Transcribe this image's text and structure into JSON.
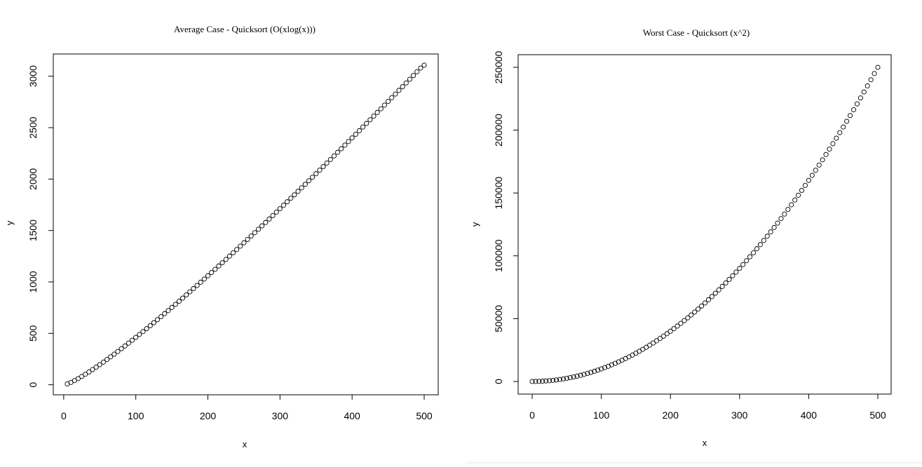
{
  "chart_data": [
    {
      "type": "scatter",
      "title": "Average Case - Quicksort (O(xlog(x)))",
      "xlabel": "x",
      "ylabel": "y",
      "xlim": [
        5,
        500
      ],
      "ylim": [
        11.6,
        3107
      ],
      "x_ticks": [
        0,
        100,
        200,
        300,
        400,
        500
      ],
      "x_tick_labels": [
        "0",
        "100",
        "200",
        "300",
        "400",
        "500"
      ],
      "y_ticks": [
        0,
        500,
        1000,
        1500,
        2000,
        2500,
        3000
      ],
      "y_tick_labels": [
        "0",
        "500",
        "1000",
        "1500",
        "2000",
        "2500",
        "3000"
      ],
      "series": [
        {
          "function": "x*ln(x)",
          "x": [
            5,
            10,
            15,
            20,
            25,
            30,
            35,
            40,
            45,
            50,
            55,
            60,
            65,
            70,
            75,
            80,
            85,
            90,
            95,
            100,
            105,
            110,
            115,
            120,
            125,
            130,
            135,
            140,
            145,
            150,
            155,
            160,
            165,
            170,
            175,
            180,
            185,
            190,
            195,
            200,
            205,
            210,
            215,
            220,
            225,
            230,
            235,
            240,
            245,
            250,
            255,
            260,
            265,
            270,
            275,
            280,
            285,
            290,
            295,
            300,
            305,
            310,
            315,
            320,
            325,
            330,
            335,
            340,
            345,
            350,
            355,
            360,
            365,
            370,
            375,
            380,
            385,
            390,
            395,
            400,
            405,
            410,
            415,
            420,
            425,
            430,
            435,
            440,
            445,
            450,
            455,
            460,
            465,
            470,
            475,
            480,
            485,
            490,
            495,
            500
          ],
          "y": [
            8.0,
            23.0,
            40.6,
            59.9,
            80.5,
            102.0,
            124.4,
            147.6,
            171.3,
            195.6,
            220.4,
            245.7,
            271.3,
            297.4,
            323.8,
            350.6,
            377.6,
            405.0,
            432.6,
            460.5,
            488.7,
            517.0,
            545.6,
            574.5,
            603.5,
            632.8,
            662.2,
            691.8,
            721.6,
            751.6,
            781.7,
            812.0,
            842.5,
            873.1,
            903.9,
            934.7,
            965.8,
            996.9,
            1028.2,
            1059.7,
            1091.2,
            1122.9,
            1154.7,
            1186.7,
            1218.7,
            1250.9,
            1283.1,
            1315.4,
            1347.9,
            1380.5,
            1413.2,
            1446.0,
            1478.9,
            1511.9,
            1545.0,
            1578.2,
            1611.4,
            1644.8,
            1678.3,
            1711.9,
            1745.5,
            1779.3,
            1813.1,
            1847.0,
            1881.0,
            1915.0,
            1949.2,
            1983.4,
            2017.7,
            2052.1,
            2086.6,
            2121.1,
            2155.8,
            2190.5,
            2225.2,
            2260.1,
            2295.0,
            2330.0,
            2365.0,
            2400.2,
            2435.3,
            2470.6,
            2505.9,
            2541.3,
            2576.7,
            2612.2,
            2647.8,
            2683.5,
            2719.2,
            2754.9,
            2790.7,
            2826.6,
            2862.6,
            2898.6,
            2934.6,
            2970.7,
            3006.9,
            3043.1,
            3079.4,
            3107.3
          ]
        }
      ]
    },
    {
      "type": "scatter",
      "title": "Worst Case - Quicksort (x^2)",
      "xlabel": "x",
      "ylabel": "y",
      "xlim": [
        0,
        500
      ],
      "ylim": [
        0,
        250000
      ],
      "x_ticks": [
        0,
        100,
        200,
        300,
        400,
        500
      ],
      "x_tick_labels": [
        "0",
        "100",
        "200",
        "300",
        "400",
        "500"
      ],
      "y_ticks": [
        0,
        50000,
        100000,
        150000,
        200000,
        250000
      ],
      "y_tick_labels": [
        "0",
        "50000",
        "100000",
        "150000",
        "200000",
        "250000"
      ],
      "series": [
        {
          "function": "x^2",
          "x": [
            0,
            5,
            10,
            15,
            20,
            25,
            30,
            35,
            40,
            45,
            50,
            55,
            60,
            65,
            70,
            75,
            80,
            85,
            90,
            95,
            100,
            105,
            110,
            115,
            120,
            125,
            130,
            135,
            140,
            145,
            150,
            155,
            160,
            165,
            170,
            175,
            180,
            185,
            190,
            195,
            200,
            205,
            210,
            215,
            220,
            225,
            230,
            235,
            240,
            245,
            250,
            255,
            260,
            265,
            270,
            275,
            280,
            285,
            290,
            295,
            300,
            305,
            310,
            315,
            320,
            325,
            330,
            335,
            340,
            345,
            350,
            355,
            360,
            365,
            370,
            375,
            380,
            385,
            390,
            395,
            400,
            405,
            410,
            415,
            420,
            425,
            430,
            435,
            440,
            445,
            450,
            455,
            460,
            465,
            470,
            475,
            480,
            485,
            490,
            495,
            500
          ],
          "y": [
            0,
            25,
            100,
            225,
            400,
            625,
            900,
            1225,
            1600,
            2025,
            2500,
            3025,
            3600,
            4225,
            4900,
            5625,
            6400,
            7225,
            8100,
            9025,
            10000,
            11025,
            12100,
            13225,
            14400,
            15625,
            16900,
            18225,
            19600,
            21025,
            22500,
            24025,
            25600,
            27225,
            28900,
            30625,
            32400,
            34225,
            36100,
            38025,
            40000,
            42025,
            44100,
            46225,
            48400,
            50625,
            52900,
            55225,
            57600,
            60025,
            62500,
            65025,
            67600,
            70225,
            72900,
            75625,
            78400,
            81225,
            84100,
            87025,
            90000,
            93025,
            96100,
            99225,
            102400,
            105625,
            108900,
            112225,
            115600,
            119025,
            122500,
            126025,
            129600,
            133225,
            136900,
            140625,
            144400,
            148225,
            152100,
            156025,
            160000,
            164025,
            168100,
            172225,
            176400,
            180625,
            184900,
            189225,
            193600,
            198025,
            202500,
            207025,
            211600,
            216225,
            220900,
            225625,
            230400,
            235225,
            240100,
            245025,
            250000
          ]
        }
      ]
    }
  ]
}
